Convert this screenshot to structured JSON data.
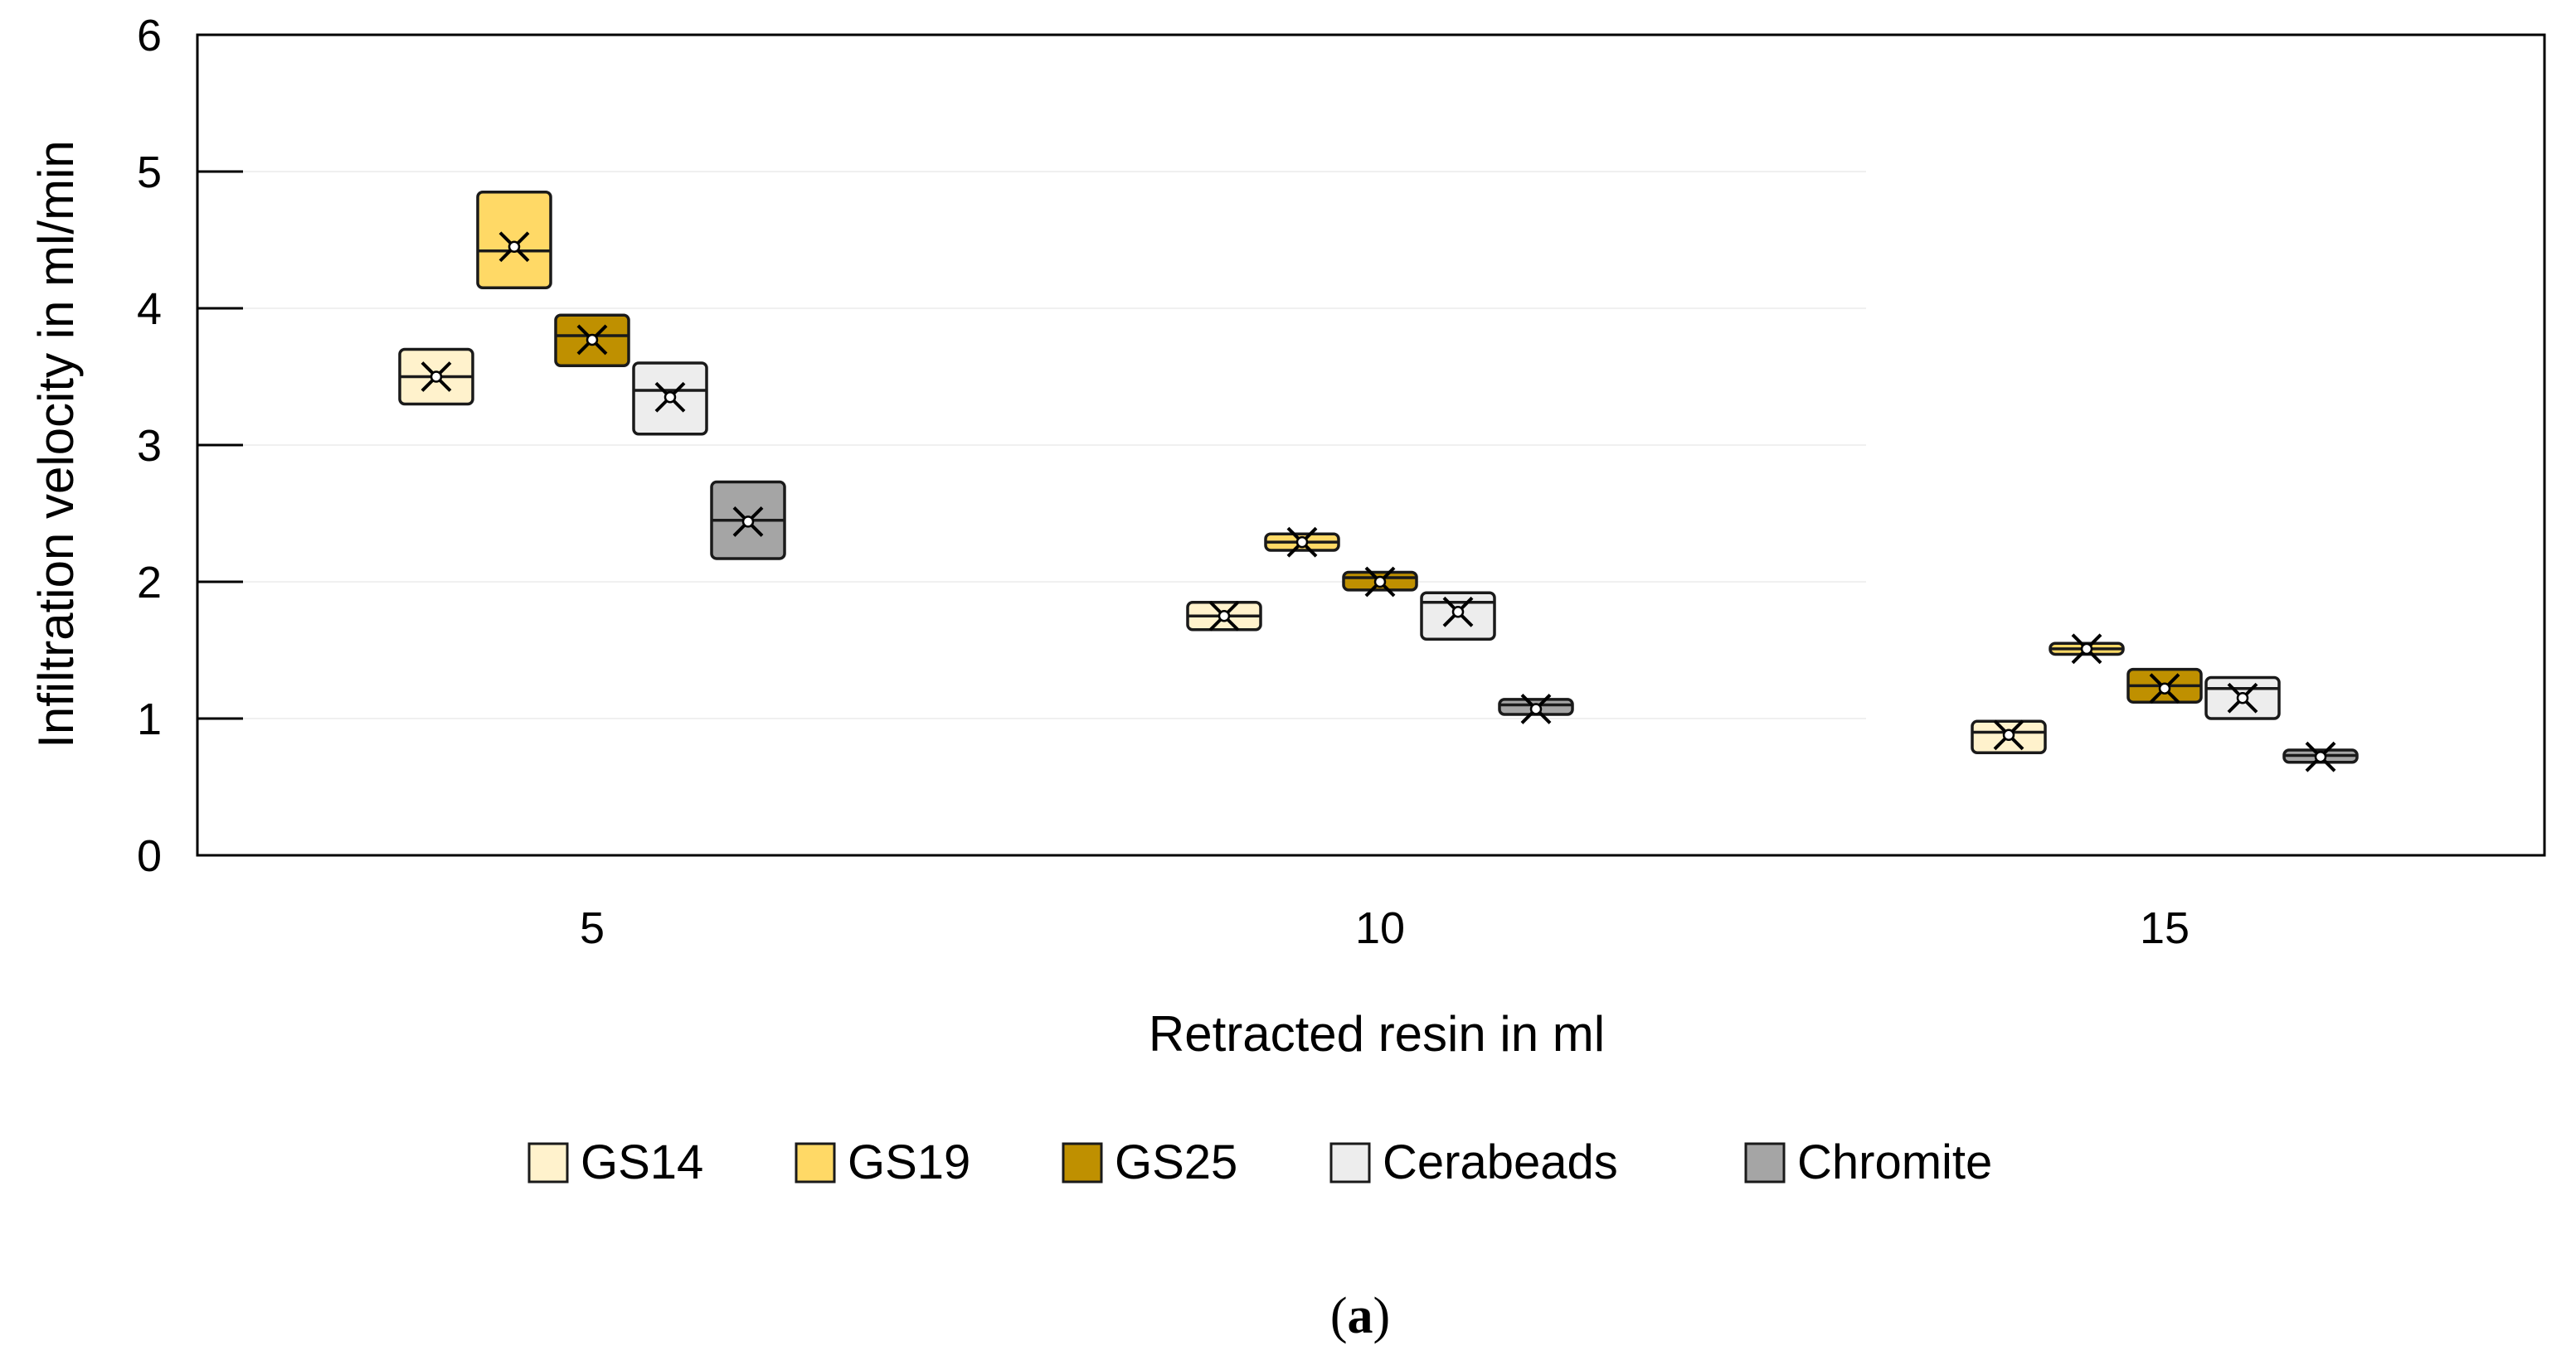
{
  "chart_data": {
    "type": "boxplot",
    "title": "",
    "xlabel": "Retracted resin in ml",
    "ylabel": "Infiltration velocity in ml/min",
    "ylim": [
      0,
      6
    ],
    "yticks": [
      "0",
      "1",
      "2",
      "3",
      "4",
      "5",
      "6"
    ],
    "categories": [
      "5",
      "10",
      "15"
    ],
    "caption": {
      "open": "(",
      "label": "a",
      "close": ")"
    },
    "series": [
      {
        "name": "GS14",
        "color": "#FFF2CC",
        "boxes": [
          {
            "q1": 3.3,
            "median": 3.5,
            "q3": 3.7,
            "mean": 3.5
          },
          {
            "q1": 1.65,
            "median": 1.75,
            "q3": 1.85,
            "mean": 1.75
          },
          {
            "q1": 0.75,
            "median": 0.9,
            "q3": 0.98,
            "mean": 0.88
          }
        ]
      },
      {
        "name": "GS19",
        "color": "#FFD966",
        "boxes": [
          {
            "q1": 4.15,
            "median": 4.42,
            "q3": 4.85,
            "mean": 4.45
          },
          {
            "q1": 2.23,
            "median": 2.29,
            "q3": 2.35,
            "mean": 2.29
          },
          {
            "q1": 1.47,
            "median": 1.51,
            "q3": 1.55,
            "mean": 1.51
          }
        ]
      },
      {
        "name": "GS25",
        "color": "#BF9000",
        "boxes": [
          {
            "q1": 3.58,
            "median": 3.8,
            "q3": 3.95,
            "mean": 3.77
          },
          {
            "q1": 1.94,
            "median": 2.03,
            "q3": 2.07,
            "mean": 2.0
          },
          {
            "q1": 1.12,
            "median": 1.24,
            "q3": 1.36,
            "mean": 1.22
          }
        ]
      },
      {
        "name": "Cerabeads",
        "color": "#EDEDED",
        "boxes": [
          {
            "q1": 3.08,
            "median": 3.4,
            "q3": 3.6,
            "mean": 3.35
          },
          {
            "q1": 1.58,
            "median": 1.85,
            "q3": 1.92,
            "mean": 1.78
          },
          {
            "q1": 1.0,
            "median": 1.22,
            "q3": 1.3,
            "mean": 1.15
          }
        ]
      },
      {
        "name": "Chromite",
        "color": "#A5A5A5",
        "boxes": [
          {
            "q1": 2.17,
            "median": 2.45,
            "q3": 2.73,
            "mean": 2.44
          },
          {
            "q1": 1.03,
            "median": 1.1,
            "q3": 1.14,
            "mean": 1.07
          },
          {
            "q1": 0.68,
            "median": 0.73,
            "q3": 0.77,
            "mean": 0.72
          }
        ]
      }
    ]
  }
}
